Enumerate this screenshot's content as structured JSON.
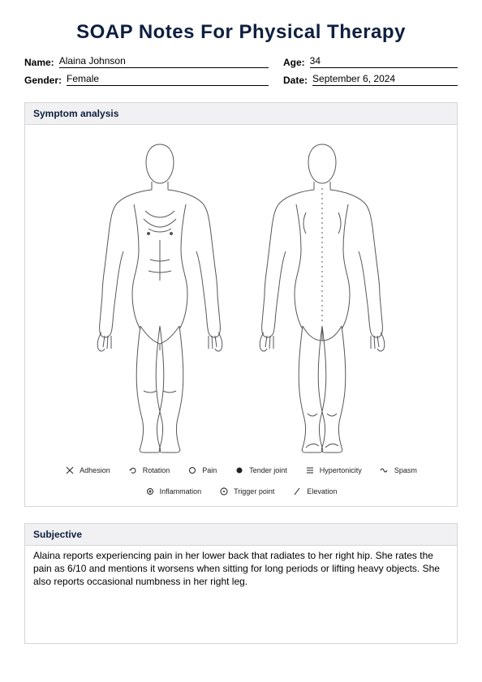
{
  "title": "SOAP Notes For Physical Therapy",
  "fields": {
    "name_label": "Name:",
    "name_value": "Alaina Johnson",
    "age_label": "Age:",
    "age_value": "34",
    "gender_label": "Gender:",
    "gender_value": "Female",
    "date_label": "Date:",
    "date_value": "September 6, 2024"
  },
  "symptom": {
    "header": "Symptom analysis",
    "body_outline_color": "#55575a",
    "body_stroke_width": 1.0,
    "legend": [
      {
        "icon": "x",
        "label": "Adhesion"
      },
      {
        "icon": "rotation",
        "label": "Rotation"
      },
      {
        "icon": "circle-open",
        "label": "Pain"
      },
      {
        "icon": "circle-filled",
        "label": "Tender joint"
      },
      {
        "icon": "hypertonicity",
        "label": "Hypertonicity"
      },
      {
        "icon": "spasm",
        "label": "Spasm"
      },
      {
        "icon": "inflammation",
        "label": "Inflammation"
      },
      {
        "icon": "trigger",
        "label": "Trigger point"
      },
      {
        "icon": "elevation",
        "label": "Elevation"
      }
    ]
  },
  "subjective": {
    "header": "Subjective",
    "text": "Alaina reports experiencing pain in her lower back that radiates to her right hip. She rates the pain as 6/10 and mentions it worsens when sitting for long periods or lifting heavy objects. She also reports occasional numbness in her right leg."
  },
  "colors": {
    "title": "#0e1f3f",
    "border": "#d6d6d6",
    "section_bg": "#f1f1f3",
    "text": "#000000"
  }
}
